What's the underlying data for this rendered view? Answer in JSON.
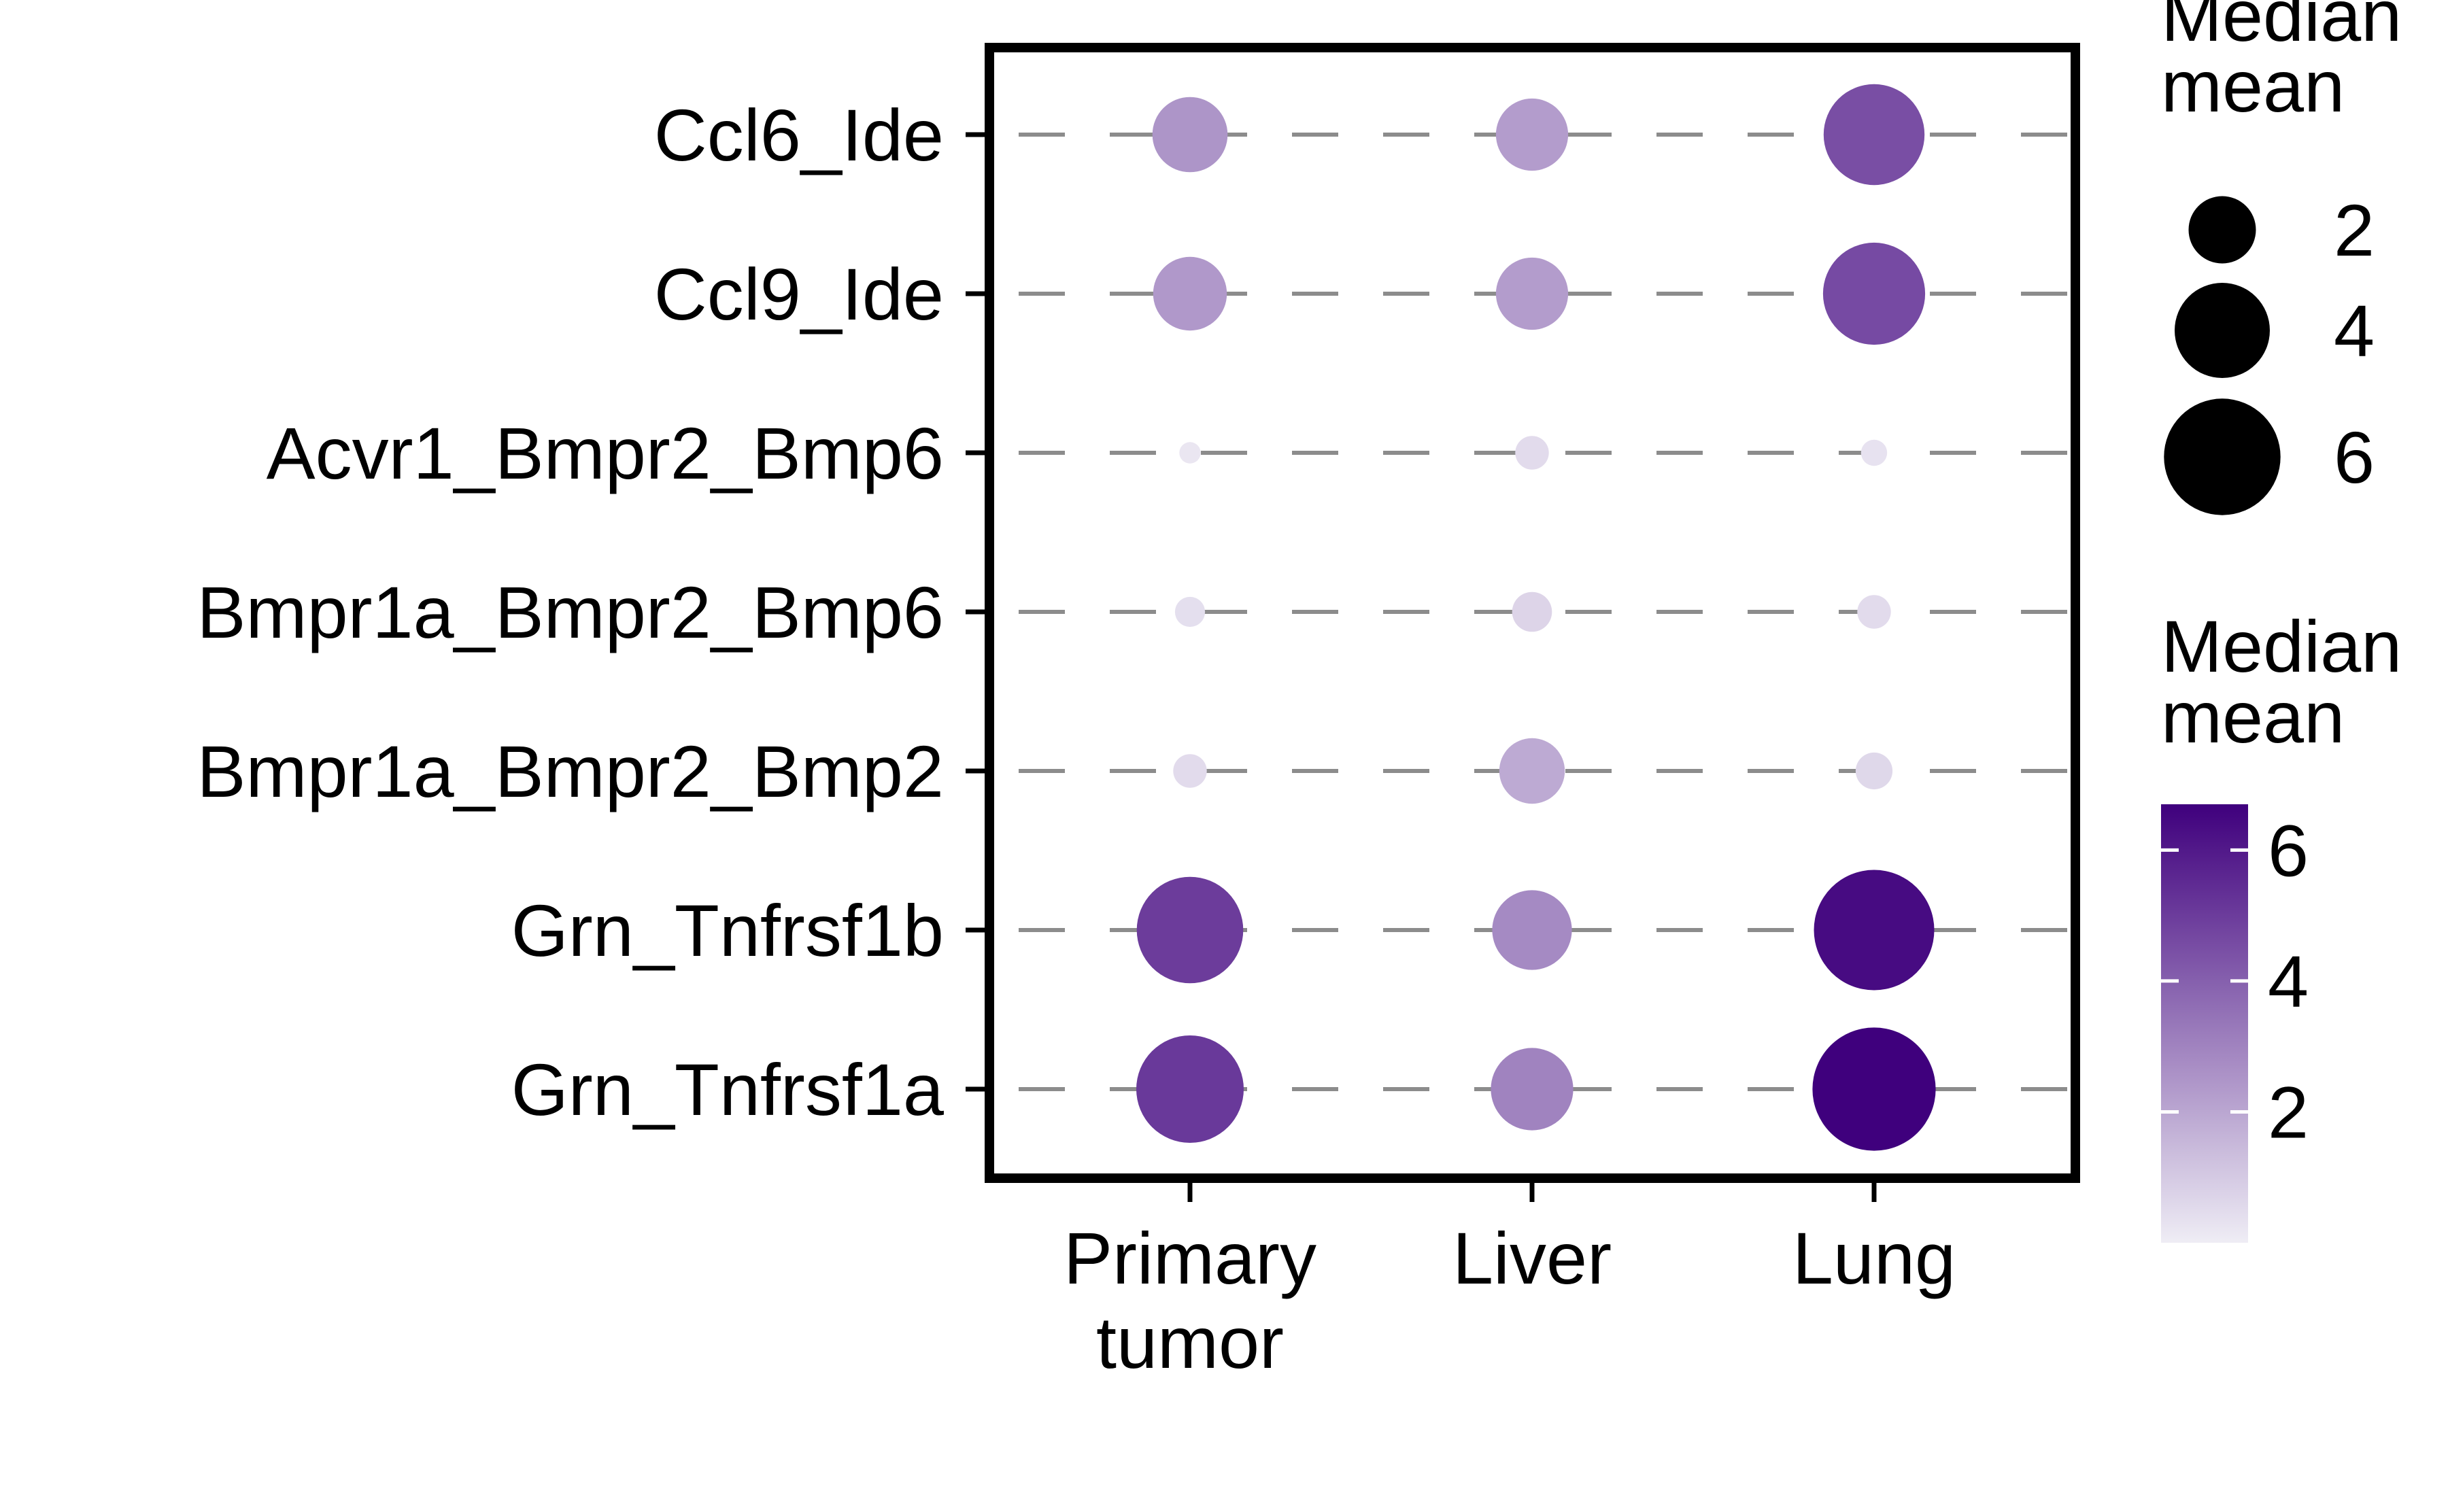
{
  "chart_data": {
    "type": "dot",
    "title": "",
    "xlabel": "",
    "ylabel": "",
    "x_categories": [
      "Primary tumor",
      "Liver",
      "Lung"
    ],
    "y_categories": [
      "Ccl6_Ide",
      "Ccl9_Ide",
      "Acvr1_Bmpr2_Bmp6",
      "Bmpr1a_Bmpr2_Bmp6",
      "Bmpr1a_Bmpr2_Bmp2",
      "Grn_Tnfrsf1b",
      "Grn_Tnfrsf1a"
    ],
    "points": [
      {
        "x": "Primary tumor",
        "y": "Ccl6_Ide",
        "value": 2.5
      },
      {
        "x": "Liver",
        "y": "Ccl6_Ide",
        "value": 2.3
      },
      {
        "x": "Lung",
        "y": "Ccl6_Ide",
        "value": 4.5
      },
      {
        "x": "Primary tumor",
        "y": "Ccl9_Ide",
        "value": 2.4
      },
      {
        "x": "Liver",
        "y": "Ccl9_Ide",
        "value": 2.3
      },
      {
        "x": "Lung",
        "y": "Ccl9_Ide",
        "value": 4.6
      },
      {
        "x": "Primary tumor",
        "y": "Acvr1_Bmpr2_Bmp6",
        "value": 0.2
      },
      {
        "x": "Liver",
        "y": "Acvr1_Bmpr2_Bmp6",
        "value": 0.5
      },
      {
        "x": "Lung",
        "y": "Acvr1_Bmpr2_Bmp6",
        "value": 0.3
      },
      {
        "x": "Primary tumor",
        "y": "Bmpr1a_Bmpr2_Bmp6",
        "value": 0.4
      },
      {
        "x": "Liver",
        "y": "Bmpr1a_Bmpr2_Bmp6",
        "value": 0.7
      },
      {
        "x": "Lung",
        "y": "Bmpr1a_Bmpr2_Bmp6",
        "value": 0.5
      },
      {
        "x": "Primary tumor",
        "y": "Bmpr1a_Bmpr2_Bmp2",
        "value": 0.5
      },
      {
        "x": "Liver",
        "y": "Bmpr1a_Bmpr2_Bmp2",
        "value": 1.9
      },
      {
        "x": "Lung",
        "y": "Bmpr1a_Bmpr2_Bmp2",
        "value": 0.6
      },
      {
        "x": "Primary tumor",
        "y": "Grn_Tnfrsf1b",
        "value": 5.0
      },
      {
        "x": "Liver",
        "y": "Grn_Tnfrsf1b",
        "value": 2.8
      },
      {
        "x": "Lung",
        "y": "Grn_Tnfrsf1b",
        "value": 6.4
      },
      {
        "x": "Primary tumor",
        "y": "Grn_Tnfrsf1a",
        "value": 5.1
      },
      {
        "x": "Liver",
        "y": "Grn_Tnfrsf1a",
        "value": 3.0
      },
      {
        "x": "Lung",
        "y": "Grn_Tnfrsf1a",
        "value": 6.7
      }
    ],
    "size_legend": {
      "title": "Median mean",
      "breaks": [
        2,
        4,
        6
      ]
    },
    "color_legend": {
      "title": "Median mean",
      "breaks": [
        2,
        4,
        6
      ],
      "range": [
        0,
        6.7
      ],
      "low_color": "#efedf5",
      "high_color": "#3f007d"
    },
    "gridlines": "dashed horizontal",
    "legend_position": "right",
    "colors": {
      "grid": "#8c8c8c",
      "panel_border": "#000000",
      "text": "#000000"
    }
  }
}
